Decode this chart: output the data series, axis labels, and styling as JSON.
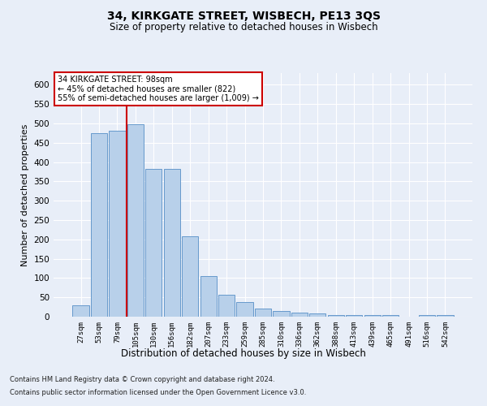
{
  "title1": "34, KIRKGATE STREET, WISBECH, PE13 3QS",
  "title2": "Size of property relative to detached houses in Wisbech",
  "xlabel": "Distribution of detached houses by size in Wisbech",
  "ylabel": "Number of detached properties",
  "categories": [
    "27sqm",
    "53sqm",
    "79sqm",
    "105sqm",
    "130sqm",
    "156sqm",
    "182sqm",
    "207sqm",
    "233sqm",
    "259sqm",
    "285sqm",
    "310sqm",
    "336sqm",
    "362sqm",
    "388sqm",
    "413sqm",
    "439sqm",
    "465sqm",
    "491sqm",
    "516sqm",
    "542sqm"
  ],
  "values": [
    30,
    475,
    480,
    497,
    382,
    382,
    208,
    104,
    57,
    37,
    20,
    14,
    11,
    9,
    5,
    5,
    5,
    5,
    1,
    5,
    5
  ],
  "bar_color": "#b8d0ea",
  "bar_edge_color": "#6699cc",
  "vline_color": "#cc0000",
  "vline_x": 2.5,
  "annotation_title": "34 KIRKGATE STREET: 98sqm",
  "annotation_line1": "← 45% of detached houses are smaller (822)",
  "annotation_line2": "55% of semi-detached houses are larger (1,009) →",
  "annotation_box_facecolor": "#ffffff",
  "annotation_box_edgecolor": "#cc0000",
  "ylim": [
    0,
    630
  ],
  "yticks": [
    0,
    50,
    100,
    150,
    200,
    250,
    300,
    350,
    400,
    450,
    500,
    550,
    600
  ],
  "footnote1": "Contains HM Land Registry data © Crown copyright and database right 2024.",
  "footnote2": "Contains public sector information licensed under the Open Government Licence v3.0.",
  "bg_color": "#e8eef8",
  "grid_color": "#ffffff",
  "title1_fontsize": 10,
  "title2_fontsize": 8.5,
  "ylabel_fontsize": 8,
  "xlabel_fontsize": 8.5
}
